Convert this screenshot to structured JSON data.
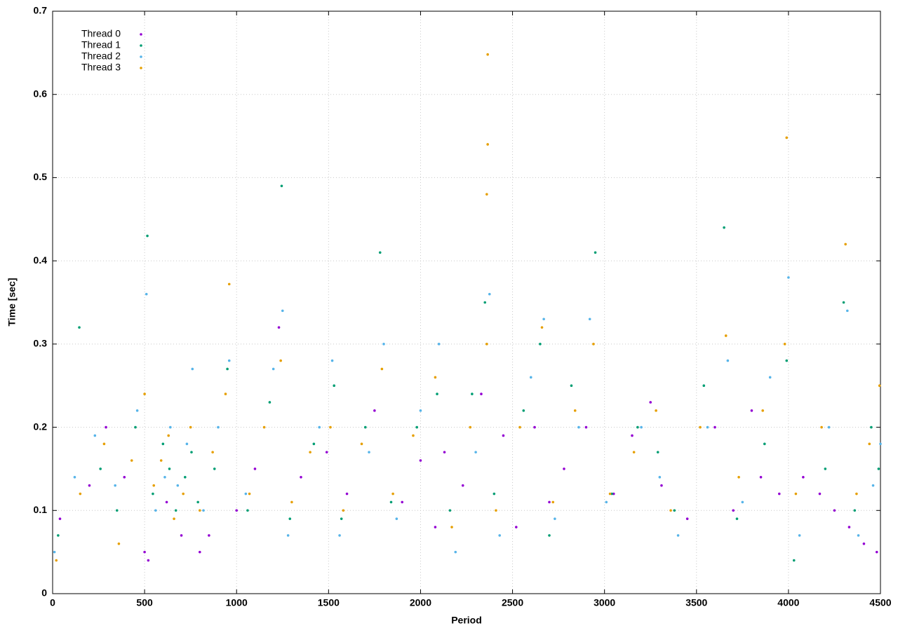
{
  "chart_data": {
    "type": "scatter",
    "x_label": "Period",
    "y_label": "Time [sec]",
    "xlim": [
      0,
      4500
    ],
    "xticks": [
      0,
      500,
      1000,
      1500,
      2000,
      2500,
      3000,
      3500,
      4000,
      4500
    ],
    "ylim": [
      0,
      0.7
    ],
    "yticks": [
      0,
      0.1,
      0.2,
      0.3,
      0.4,
      0.5,
      0.6,
      0.7
    ],
    "grid": true,
    "legend": "upper left",
    "series": [
      {
        "name": "Thread 0",
        "color": "#9400d3",
        "x": [
          40,
          200,
          290,
          390,
          500,
          520,
          620,
          700,
          800,
          850,
          1000,
          1100,
          1230,
          1350,
          1490,
          1600,
          1750,
          1900,
          2000,
          2080,
          2130,
          2230,
          2330,
          2450,
          2520,
          2620,
          2700,
          2780,
          2900,
          3050,
          3150,
          3250,
          3310,
          3450,
          3600,
          3700,
          3800,
          3850,
          3950,
          4080,
          4170,
          4250,
          4330,
          4410,
          4480
        ],
        "values": [
          0.09,
          0.13,
          0.2,
          0.14,
          0.05,
          0.04,
          0.11,
          0.07,
          0.05,
          0.07,
          0.1,
          0.15,
          0.32,
          0.14,
          0.17,
          0.12,
          0.22,
          0.11,
          0.16,
          0.08,
          0.17,
          0.13,
          0.24,
          0.19,
          0.08,
          0.2,
          0.11,
          0.15,
          0.2,
          0.12,
          0.19,
          0.23,
          0.13,
          0.09,
          0.2,
          0.1,
          0.22,
          0.14,
          0.12,
          0.14,
          0.12,
          0.1,
          0.08,
          0.06,
          0.05
        ]
      },
      {
        "name": "Thread 1",
        "color": "#009e73",
        "x": [
          30,
          145,
          260,
          350,
          450,
          515,
          545,
          600,
          635,
          670,
          720,
          755,
          790,
          880,
          950,
          1060,
          1180,
          1245,
          1290,
          1420,
          1530,
          1570,
          1700,
          1780,
          1840,
          1980,
          2090,
          2160,
          2280,
          2350,
          2400,
          2560,
          2650,
          2700,
          2820,
          2950,
          3040,
          3180,
          3290,
          3380,
          3540,
          3650,
          3720,
          3870,
          3990,
          4030,
          4200,
          4300,
          4360,
          4450,
          4490
        ],
        "values": [
          0.07,
          0.32,
          0.15,
          0.1,
          0.2,
          0.43,
          0.12,
          0.18,
          0.15,
          0.1,
          0.14,
          0.17,
          0.11,
          0.15,
          0.27,
          0.1,
          0.23,
          0.49,
          0.09,
          0.18,
          0.25,
          0.09,
          0.2,
          0.41,
          0.11,
          0.2,
          0.24,
          0.1,
          0.24,
          0.35,
          0.12,
          0.22,
          0.3,
          0.07,
          0.25,
          0.41,
          0.12,
          0.2,
          0.17,
          0.1,
          0.25,
          0.44,
          0.09,
          0.18,
          0.28,
          0.04,
          0.15,
          0.35,
          0.1,
          0.2,
          0.15
        ]
      },
      {
        "name": "Thread 2",
        "color": "#56b4e9",
        "x": [
          10,
          120,
          230,
          340,
          460,
          510,
          560,
          610,
          640,
          680,
          730,
          760,
          820,
          900,
          960,
          1050,
          1200,
          1250,
          1280,
          1450,
          1520,
          1560,
          1720,
          1800,
          1870,
          2000,
          2100,
          2190,
          2300,
          2375,
          2430,
          2600,
          2670,
          2730,
          2860,
          2920,
          3010,
          3200,
          3300,
          3400,
          3560,
          3670,
          3750,
          3900,
          4000,
          4060,
          4220,
          4320,
          4380,
          4460,
          4500
        ],
        "values": [
          0.05,
          0.14,
          0.19,
          0.13,
          0.22,
          0.36,
          0.1,
          0.14,
          0.2,
          0.13,
          0.18,
          0.27,
          0.1,
          0.2,
          0.28,
          0.12,
          0.27,
          0.34,
          0.07,
          0.2,
          0.28,
          0.07,
          0.17,
          0.3,
          0.09,
          0.22,
          0.3,
          0.05,
          0.17,
          0.36,
          0.07,
          0.26,
          0.33,
          0.09,
          0.2,
          0.33,
          0.11,
          0.2,
          0.14,
          0.07,
          0.2,
          0.28,
          0.11,
          0.26,
          0.38,
          0.07,
          0.2,
          0.34,
          0.07,
          0.13,
          0.18
        ]
      },
      {
        "name": "Thread 3",
        "color": "#e69f00",
        "x": [
          20,
          150,
          280,
          360,
          430,
          500,
          550,
          590,
          630,
          660,
          710,
          750,
          800,
          870,
          940,
          1070,
          1150,
          1240,
          1300,
          1400,
          1510,
          1580,
          1680,
          1790,
          1850,
          1960,
          2080,
          2170,
          2270,
          2360,
          2410,
          2540,
          2660,
          2720,
          2840,
          2940,
          3030,
          3160,
          3280,
          3360,
          3520,
          3660,
          3730,
          3860,
          3980,
          4040,
          4180,
          4310,
          4370,
          4440,
          4495,
          2365,
          2365,
          3990,
          2360,
          960
        ],
        "values": [
          0.04,
          0.12,
          0.18,
          0.06,
          0.16,
          0.24,
          0.13,
          0.16,
          0.19,
          0.09,
          0.12,
          0.2,
          0.1,
          0.17,
          0.24,
          0.12,
          0.2,
          0.28,
          0.11,
          0.17,
          0.2,
          0.1,
          0.18,
          0.27,
          0.12,
          0.19,
          0.26,
          0.08,
          0.2,
          0.3,
          0.1,
          0.2,
          0.32,
          0.11,
          0.22,
          0.3,
          0.12,
          0.17,
          0.22,
          0.1,
          0.2,
          0.31,
          0.14,
          0.22,
          0.3,
          0.12,
          0.2,
          0.42,
          0.12,
          0.18,
          0.25,
          0.648,
          0.54,
          0.548,
          0.48,
          0.372
        ]
      }
    ]
  }
}
